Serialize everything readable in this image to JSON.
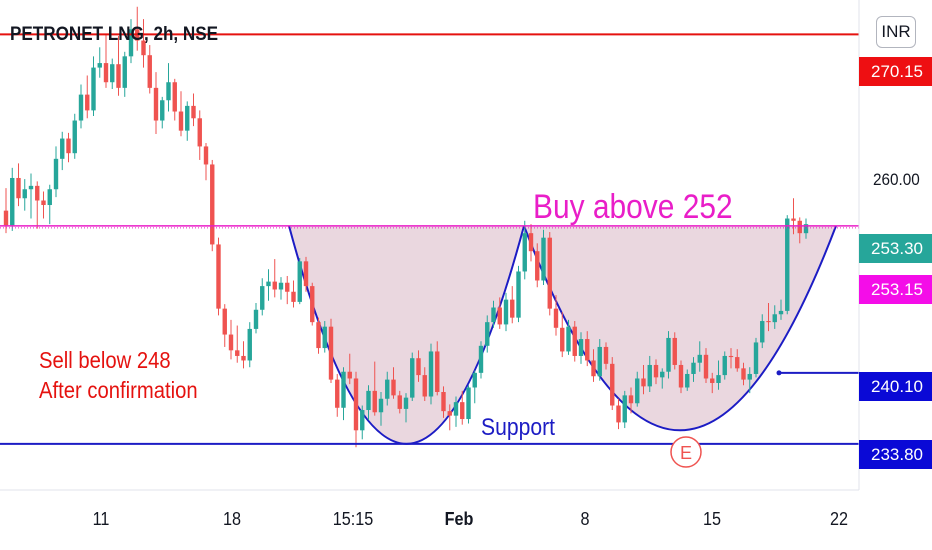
{
  "header": {
    "symbol": "PETRONET LNG, 2h, NSE",
    "currency": "INR"
  },
  "annotations": {
    "buy": "Buy above 252",
    "sell_line1": "Sell below 248",
    "sell_line2": "After confirmation",
    "support": "Support",
    "event_badge": "E"
  },
  "colors": {
    "up": "#26a69a",
    "down": "#ef5350",
    "resistance": "#e5120f",
    "support": "#1c1cc4",
    "neckline": "#e91ec8",
    "cup_fill": "#d9b7c4",
    "price_tag": "#26a69a",
    "tag_magenta": "#f40de8",
    "tag_blue": "#0a09d6",
    "tag_red": "#ee0f12"
  },
  "chart_data": {
    "type": "candlestick",
    "symbol": "PETRONET LNG",
    "interval": "2h",
    "exchange": "NSE",
    "currency": "INR",
    "ylim": [
      229.7,
      273.2
    ],
    "y_ticks": [
      260.0
    ],
    "y_tick_labels": [
      "260.00"
    ],
    "x_ticks": [
      "11",
      "18",
      "15:15",
      "Feb",
      "8",
      "15",
      "22"
    ],
    "candles": [
      [
        254.5,
        256.5,
        252.5,
        253.2
      ],
      [
        253.2,
        258.3,
        252.7,
        257.4
      ],
      [
        257.4,
        258.7,
        254.9,
        255.6
      ],
      [
        255.6,
        257.3,
        254.5,
        256.4
      ],
      [
        256.4,
        257.8,
        253.8,
        256.7
      ],
      [
        256.7,
        257.1,
        252.9,
        255.4
      ],
      [
        255.4,
        256.2,
        253.8,
        255.0
      ],
      [
        255.0,
        256.8,
        253.3,
        256.4
      ],
      [
        256.4,
        260.2,
        255.7,
        259.1
      ],
      [
        259.1,
        261.5,
        258.1,
        260.9
      ],
      [
        260.9,
        261.4,
        258.8,
        259.6
      ],
      [
        259.6,
        263.1,
        259.1,
        262.5
      ],
      [
        262.5,
        265.7,
        261.8,
        264.8
      ],
      [
        264.8,
        266.5,
        262.7,
        263.4
      ],
      [
        263.4,
        268.2,
        262.9,
        267.2
      ],
      [
        267.2,
        269.0,
        266.3,
        267.6
      ],
      [
        267.6,
        270.1,
        265.4,
        265.9
      ],
      [
        265.9,
        268.0,
        265.3,
        267.5
      ],
      [
        267.5,
        270.0,
        264.7,
        265.4
      ],
      [
        265.4,
        268.6,
        264.6,
        268.2
      ],
      [
        268.2,
        271.5,
        267.6,
        270.6
      ],
      [
        270.6,
        272.6,
        268.7,
        269.6
      ],
      [
        269.6,
        271.5,
        267.2,
        268.3
      ],
      [
        268.3,
        269.2,
        264.9,
        265.4
      ],
      [
        265.4,
        266.8,
        261.3,
        262.5
      ],
      [
        262.5,
        264.6,
        261.8,
        264.3
      ],
      [
        264.3,
        267.6,
        263.3,
        265.9
      ],
      [
        265.9,
        266.2,
        262.5,
        263.3
      ],
      [
        263.3,
        265.1,
        261.1,
        261.6
      ],
      [
        261.6,
        264.2,
        260.7,
        263.8
      ],
      [
        263.8,
        264.9,
        262.0,
        262.7
      ],
      [
        262.7,
        263.4,
        259.0,
        260.2
      ],
      [
        260.2,
        260.5,
        257.2,
        258.6
      ],
      [
        258.6,
        259.0,
        250.9,
        251.5
      ],
      [
        251.5,
        252.1,
        245.2,
        245.8
      ],
      [
        245.8,
        246.2,
        242.4,
        243.5
      ],
      [
        243.5,
        244.8,
        241.3,
        242.1
      ],
      [
        242.1,
        244.3,
        241.0,
        241.6
      ],
      [
        241.6,
        242.9,
        240.5,
        241.2
      ],
      [
        241.2,
        244.6,
        240.6,
        244.0
      ],
      [
        244.0,
        246.3,
        243.6,
        245.7
      ],
      [
        245.7,
        248.5,
        245.2,
        247.8
      ],
      [
        247.8,
        249.3,
        246.5,
        248.2
      ],
      [
        248.2,
        250.2,
        246.8,
        247.5
      ],
      [
        247.5,
        248.6,
        246.6,
        248.1
      ],
      [
        248.1,
        248.7,
        246.2,
        247.3
      ],
      [
        247.3,
        248.3,
        245.9,
        246.4
      ],
      [
        246.4,
        250.3,
        246.2,
        250.0
      ],
      [
        250.0,
        250.4,
        247.3,
        247.8
      ],
      [
        247.8,
        248.1,
        244.3,
        244.6
      ],
      [
        244.6,
        245.0,
        241.8,
        242.3
      ],
      [
        242.3,
        244.7,
        241.9,
        244.2
      ],
      [
        244.2,
        244.9,
        239.2,
        239.5
      ],
      [
        239.5,
        240.0,
        236.2,
        237.0
      ],
      [
        237.0,
        240.6,
        235.9,
        240.2
      ],
      [
        240.2,
        241.8,
        239.1,
        239.6
      ],
      [
        239.6,
        240.2,
        233.5,
        235.0
      ],
      [
        235.0,
        237.2,
        234.2,
        236.8
      ],
      [
        236.8,
        239.0,
        235.9,
        238.5
      ],
      [
        238.5,
        241.1,
        236.3,
        236.6
      ],
      [
        236.6,
        238.4,
        235.4,
        237.8
      ],
      [
        237.8,
        240.2,
        237.2,
        239.5
      ],
      [
        239.5,
        240.6,
        237.8,
        238.1
      ],
      [
        238.1,
        238.5,
        236.5,
        236.9
      ],
      [
        236.9,
        238.3,
        235.7,
        237.9
      ],
      [
        237.9,
        241.9,
        237.6,
        241.4
      ],
      [
        241.4,
        242.1,
        239.3,
        239.9
      ],
      [
        239.9,
        240.6,
        237.6,
        238.0
      ],
      [
        238.0,
        242.7,
        237.3,
        242.0
      ],
      [
        242.0,
        242.9,
        238.1,
        238.4
      ],
      [
        238.4,
        238.9,
        236.1,
        236.7
      ],
      [
        236.7,
        237.3,
        235.0,
        236.3
      ],
      [
        236.3,
        238.0,
        235.3,
        237.5
      ],
      [
        237.5,
        238.5,
        235.5,
        236.0
      ],
      [
        236.0,
        239.0,
        235.6,
        238.8
      ],
      [
        238.8,
        240.3,
        237.4,
        240.1
      ],
      [
        240.1,
        242.9,
        239.6,
        242.5
      ],
      [
        242.5,
        245.2,
        241.9,
        244.6
      ],
      [
        244.6,
        246.5,
        244.1,
        245.9
      ],
      [
        245.9,
        246.8,
        244.0,
        244.4
      ],
      [
        244.4,
        247.2,
        243.8,
        246.6
      ],
      [
        246.6,
        247.8,
        244.5,
        245.0
      ],
      [
        245.0,
        249.6,
        244.6,
        249.1
      ],
      [
        249.1,
        253.6,
        248.4,
        252.5
      ],
      [
        252.5,
        253.3,
        250.0,
        250.9
      ],
      [
        250.9,
        251.6,
        247.7,
        248.3
      ],
      [
        248.3,
        252.8,
        247.9,
        252.1
      ],
      [
        252.1,
        252.6,
        245.2,
        245.8
      ],
      [
        245.8,
        247.0,
        243.4,
        244.1
      ],
      [
        244.1,
        245.5,
        241.5,
        242.0
      ],
      [
        242.0,
        244.8,
        241.7,
        244.2
      ],
      [
        244.2,
        244.7,
        241.1,
        241.6
      ],
      [
        241.6,
        243.7,
        240.9,
        243.1
      ],
      [
        243.1,
        243.8,
        240.7,
        241.2
      ],
      [
        241.2,
        242.2,
        239.3,
        239.8
      ],
      [
        239.8,
        243.1,
        239.4,
        242.4
      ],
      [
        242.4,
        242.8,
        240.4,
        240.9
      ],
      [
        240.9,
        241.5,
        236.8,
        237.2
      ],
      [
        237.2,
        237.8,
        235.1,
        235.7
      ],
      [
        235.7,
        238.5,
        235.2,
        238.1
      ],
      [
        238.1,
        238.8,
        236.5,
        237.4
      ],
      [
        237.4,
        240.2,
        237.1,
        239.6
      ],
      [
        239.6,
        240.8,
        238.2,
        238.9
      ],
      [
        238.9,
        241.6,
        238.4,
        240.8
      ],
      [
        240.8,
        241.3,
        239.1,
        239.7
      ],
      [
        239.7,
        240.5,
        238.7,
        240.2
      ],
      [
        240.2,
        243.8,
        239.6,
        243.2
      ],
      [
        243.2,
        243.7,
        240.4,
        240.8
      ],
      [
        240.8,
        241.2,
        238.3,
        238.8
      ],
      [
        238.8,
        240.4,
        238.5,
        240.0
      ],
      [
        240.0,
        241.5,
        239.3,
        241.0
      ],
      [
        241.0,
        242.9,
        240.2,
        241.7
      ],
      [
        241.7,
        242.3,
        239.2,
        239.6
      ],
      [
        239.6,
        240.1,
        238.3,
        239.2
      ],
      [
        239.2,
        241.2,
        238.6,
        239.9
      ],
      [
        239.9,
        242.0,
        239.5,
        241.6
      ],
      [
        241.6,
        242.3,
        240.5,
        241.5
      ],
      [
        241.5,
        242.2,
        240.2,
        240.5
      ],
      [
        240.5,
        241.0,
        239.0,
        239.5
      ],
      [
        239.5,
        240.6,
        238.3,
        240.0
      ],
      [
        240.0,
        243.2,
        239.7,
        242.8
      ],
      [
        242.8,
        245.3,
        242.3,
        244.7
      ],
      [
        244.7,
        246.3,
        243.8,
        244.6
      ],
      [
        244.6,
        246.1,
        244.0,
        245.3
      ],
      [
        245.3,
        246.6,
        244.8,
        245.6
      ],
      [
        245.6,
        254.1,
        245.3,
        253.8
      ],
      [
        253.8,
        255.6,
        252.4,
        253.6
      ],
      [
        253.6,
        253.9,
        251.6,
        252.5
      ],
      [
        252.5,
        253.8,
        252.0,
        253.3
      ]
    ],
    "last_price": 253.3,
    "lines": {
      "resistance": 270.15,
      "neckline": 253.15,
      "breakdown_level": 240.1,
      "support": 233.8
    },
    "price_labels": [
      {
        "label": "270.15",
        "value": 270.15
      },
      {
        "label": "253.30",
        "value": 253.3
      },
      {
        "label": "253.15",
        "value": 253.15
      },
      {
        "label": "240.10",
        "value": 240.1
      },
      {
        "label": "233.80",
        "value": 233.8
      }
    ],
    "annotations": [
      "Buy above 252",
      "Sell below 248",
      "After confirmation",
      "Support"
    ],
    "grid": false,
    "legend": "none"
  }
}
